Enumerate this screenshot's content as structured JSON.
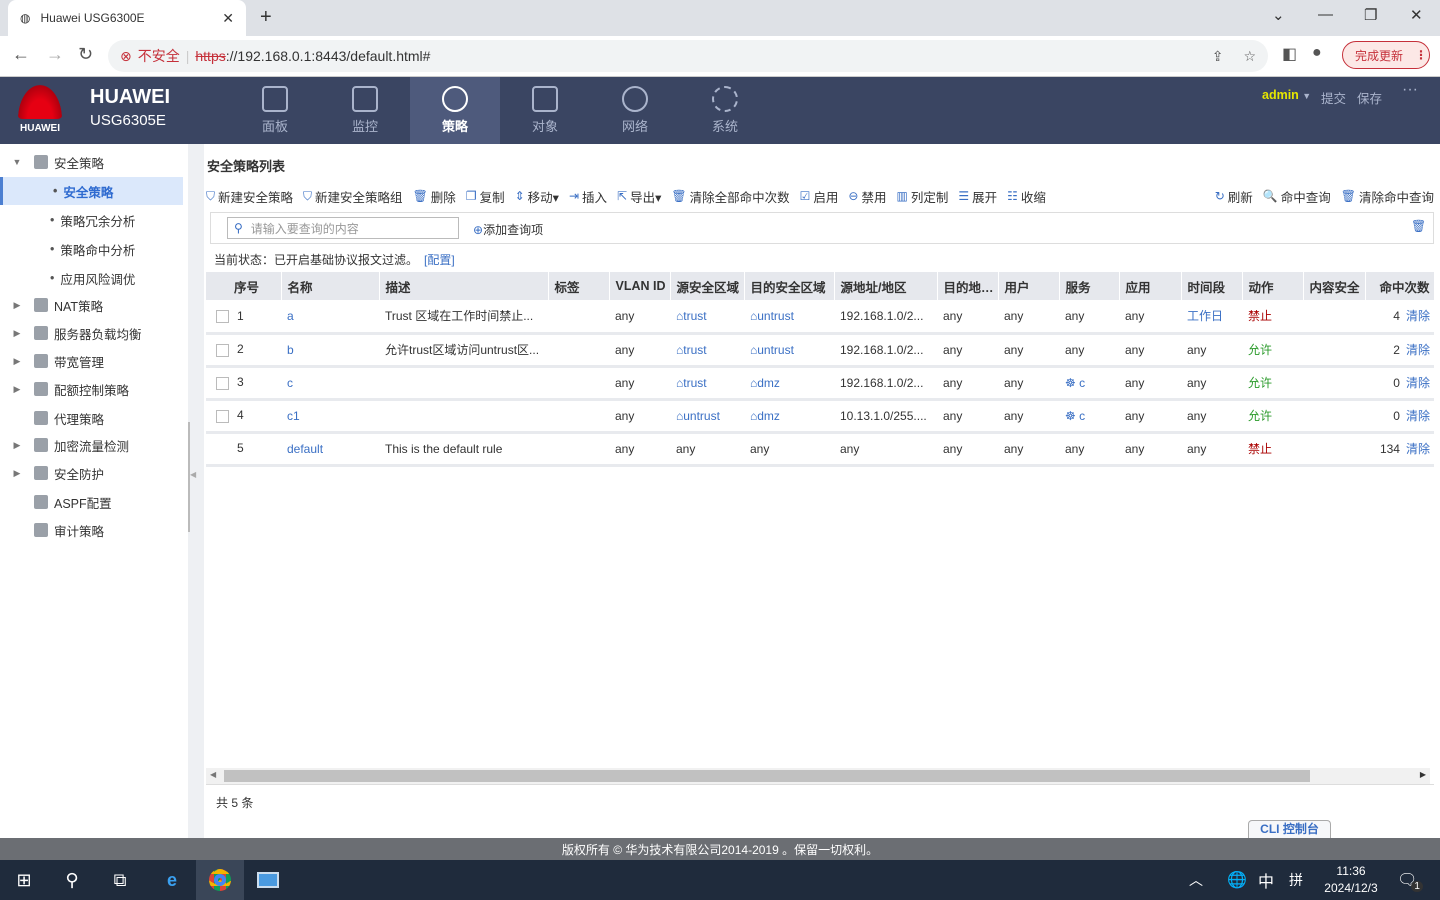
{
  "browser": {
    "tab_title": "Huawei USG6300E",
    "insecure_label": "不安全",
    "url_scheme": "https",
    "url_rest": "://192.168.0.1:8443/default.html#",
    "update_button": "完成更新"
  },
  "header": {
    "brand": "HUAWEI",
    "logo_text": "HUAWEI",
    "model": "USG6305E",
    "user": "admin",
    "submit": "提交",
    "save": "保存",
    "more": "···",
    "tabs": [
      {
        "label": "面板"
      },
      {
        "label": "监控"
      },
      {
        "label": "策略",
        "active": true
      },
      {
        "label": "对象"
      },
      {
        "label": "网络"
      },
      {
        "label": "系统"
      }
    ]
  },
  "sidebar": {
    "items": [
      {
        "label": "安全策略",
        "expanded": true
      },
      {
        "label": "安全策略",
        "sub": true,
        "active": true
      },
      {
        "label": "策略冗余分析",
        "sub": true
      },
      {
        "label": "策略命中分析",
        "sub": true
      },
      {
        "label": "应用风险调优",
        "sub": true
      },
      {
        "label": "NAT策略"
      },
      {
        "label": "服务器负载均衡"
      },
      {
        "label": "带宽管理"
      },
      {
        "label": "配额控制策略"
      },
      {
        "label": "代理策略"
      },
      {
        "label": "加密流量检测"
      },
      {
        "label": "安全防护"
      },
      {
        "label": "ASPF配置"
      },
      {
        "label": "审计策略"
      }
    ]
  },
  "main": {
    "title": "安全策略列表",
    "toolbar": [
      "新建安全策略",
      "新建安全策略组",
      "删除",
      "复制",
      "移动▾",
      "插入",
      "导出▾",
      "清除全部命中次数",
      "启用",
      "禁用",
      "列定制",
      "展开",
      "收缩"
    ],
    "toolbar_right": [
      "刷新",
      "命中查询",
      "清除命中查询"
    ],
    "search_placeholder": "请输入要查询的内容",
    "add_query": "添加查询项",
    "status_text": "当前状态：已开启基础协议报文过滤。",
    "status_link": "[配置]",
    "columns": [
      "序号",
      "名称",
      "描述",
      "标签",
      "VLAN ID",
      "源安全区域",
      "目的安全区域",
      "源地址/地区",
      "目的地…",
      "用户",
      "服务",
      "应用",
      "时间段",
      "动作",
      "内容安全",
      "命中次数"
    ],
    "rows": [
      {
        "id": "1",
        "name": "a",
        "desc": "Trust 区域在工作时间禁止...",
        "tag": "",
        "vlan": "any",
        "src": "trust",
        "dst": "untrust",
        "saddr": "192.168.1.0/2...",
        "daddr": "any",
        "user": "any",
        "svc": "any",
        "app": "any",
        "time": "工作日",
        "action": "禁止",
        "content": "",
        "hits": "4",
        "clear": "清除"
      },
      {
        "id": "2",
        "name": "b",
        "desc": "允许trust区域访问untrust区...",
        "tag": "",
        "vlan": "any",
        "src": "trust",
        "dst": "untrust",
        "saddr": "192.168.1.0/2...",
        "daddr": "any",
        "user": "any",
        "svc": "any",
        "app": "any",
        "time": "any",
        "action": "允许",
        "content": "",
        "hits": "2",
        "clear": "清除"
      },
      {
        "id": "3",
        "name": "c",
        "desc": "",
        "tag": "",
        "vlan": "any",
        "src": "trust",
        "dst": "dmz",
        "saddr": "192.168.1.0/2...",
        "daddr": "any",
        "user": "any",
        "svc": "c",
        "app": "any",
        "time": "any",
        "action": "允许",
        "content": "",
        "hits": "0",
        "clear": "清除"
      },
      {
        "id": "4",
        "name": "c1",
        "desc": "",
        "tag": "",
        "vlan": "any",
        "src": "untrust",
        "dst": "dmz",
        "saddr": "10.13.1.0/255....",
        "daddr": "any",
        "user": "any",
        "svc": "c",
        "app": "any",
        "time": "any",
        "action": "允许",
        "content": "",
        "hits": "0",
        "clear": "清除"
      },
      {
        "id": "5",
        "name": "default",
        "desc": "This is the default rule",
        "tag": "",
        "vlan": "any",
        "src": "any",
        "dst": "any",
        "saddr": "any",
        "daddr": "any",
        "user": "any",
        "svc": "any",
        "app": "any",
        "time": "any",
        "action": "禁止",
        "content": "",
        "hits": "134",
        "clear": "清除"
      }
    ],
    "total": "共 5 条"
  },
  "cli": "CLI 控制台",
  "copyright": "版权所有 © 华为技术有限公司2014-2019 。保留一切权利。",
  "taskbar": {
    "ime": "中",
    "ime2": "拼",
    "time": "11:36",
    "date": "2024/12/3",
    "notifications": "1"
  },
  "colors": {
    "header": "#3a4562",
    "accent": "#3a6fc4",
    "deny": "#aa0000",
    "allow": "#2a9a2a",
    "user": "#e6e600"
  }
}
